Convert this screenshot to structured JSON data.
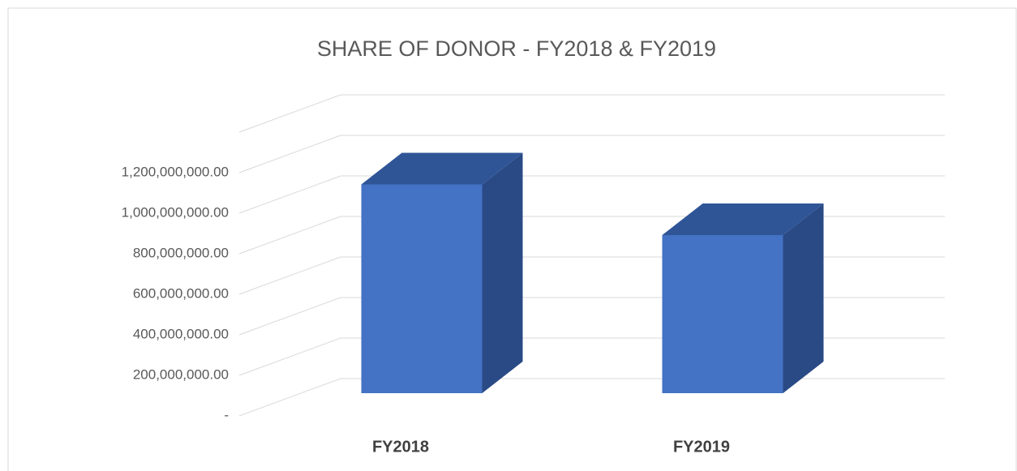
{
  "chart_data": {
    "type": "bar3d",
    "title": "SHARE OF DONOR - FY2018 & FY2019",
    "categories": [
      "FY2018",
      "FY2019"
    ],
    "values": [
      1030000000,
      780000000
    ],
    "color": "#4472c4",
    "ylim": [
      0,
      1400000000
    ],
    "yticks": [
      {
        "value": 0,
        "label": "-"
      },
      {
        "value": 200000000,
        "label": "200,000,000.00"
      },
      {
        "value": 400000000,
        "label": "400,000,000.00"
      },
      {
        "value": 600000000,
        "label": "600,000,000.00"
      },
      {
        "value": 800000000,
        "label": "800,000,000.00"
      },
      {
        "value": 1000000000,
        "label": "1,000,000,000.00"
      },
      {
        "value": 1200000000,
        "label": "1,200,000,000.00"
      }
    ],
    "grid": true
  }
}
